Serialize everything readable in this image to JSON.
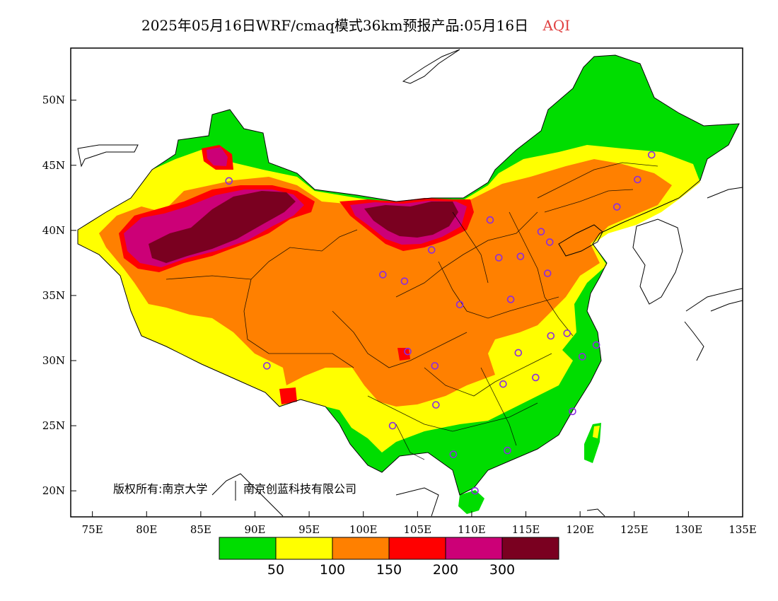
{
  "map": {
    "title_main": "2025年05月16日WRF/cmaq模式36km预报产品:05月16日",
    "title_var": "AQI",
    "title_var_color": "#e04040",
    "copyright": "版权所有:南京大学",
    "copyright_company": "南京创蓝科技有限公司",
    "lat_ticks": [
      "50N",
      "45N",
      "40N",
      "35N",
      "30N",
      "25N",
      "20N"
    ],
    "lon_ticks": [
      "75E",
      "80E",
      "85E",
      "90E",
      "95E",
      "100E",
      "105E",
      "110E",
      "115E",
      "120E",
      "125E",
      "130E",
      "135E"
    ],
    "legend": {
      "colors": [
        "#00dd00",
        "#ffff00",
        "#ff8000",
        "#ff0000",
        "#cc0077",
        "#7a0020"
      ],
      "labels": [
        "50",
        "100",
        "150",
        "200",
        "300"
      ]
    },
    "stations": [
      [
        126.6,
        45.8
      ],
      [
        125.3,
        43.9
      ],
      [
        123.4,
        41.8
      ],
      [
        117.2,
        39.1
      ],
      [
        116.4,
        39.9
      ],
      [
        114.5,
        38.0
      ],
      [
        112.5,
        37.9
      ],
      [
        111.7,
        40.8
      ],
      [
        106.3,
        38.5
      ],
      [
        103.8,
        36.1
      ],
      [
        101.8,
        36.6
      ],
      [
        87.6,
        43.8
      ],
      [
        91.1,
        29.6
      ],
      [
        104.1,
        30.7
      ],
      [
        106.6,
        29.6
      ],
      [
        113.6,
        34.7
      ],
      [
        117.0,
        36.7
      ],
      [
        108.9,
        34.3
      ],
      [
        117.3,
        31.9
      ],
      [
        118.8,
        32.1
      ],
      [
        120.2,
        30.3
      ],
      [
        121.5,
        31.2
      ],
      [
        114.3,
        30.6
      ],
      [
        112.9,
        28.2
      ],
      [
        115.9,
        28.7
      ],
      [
        119.3,
        26.1
      ],
      [
        113.3,
        23.1
      ],
      [
        108.3,
        22.8
      ],
      [
        102.7,
        25.0
      ],
      [
        106.7,
        26.6
      ],
      [
        110.3,
        20.0
      ]
    ]
  }
}
